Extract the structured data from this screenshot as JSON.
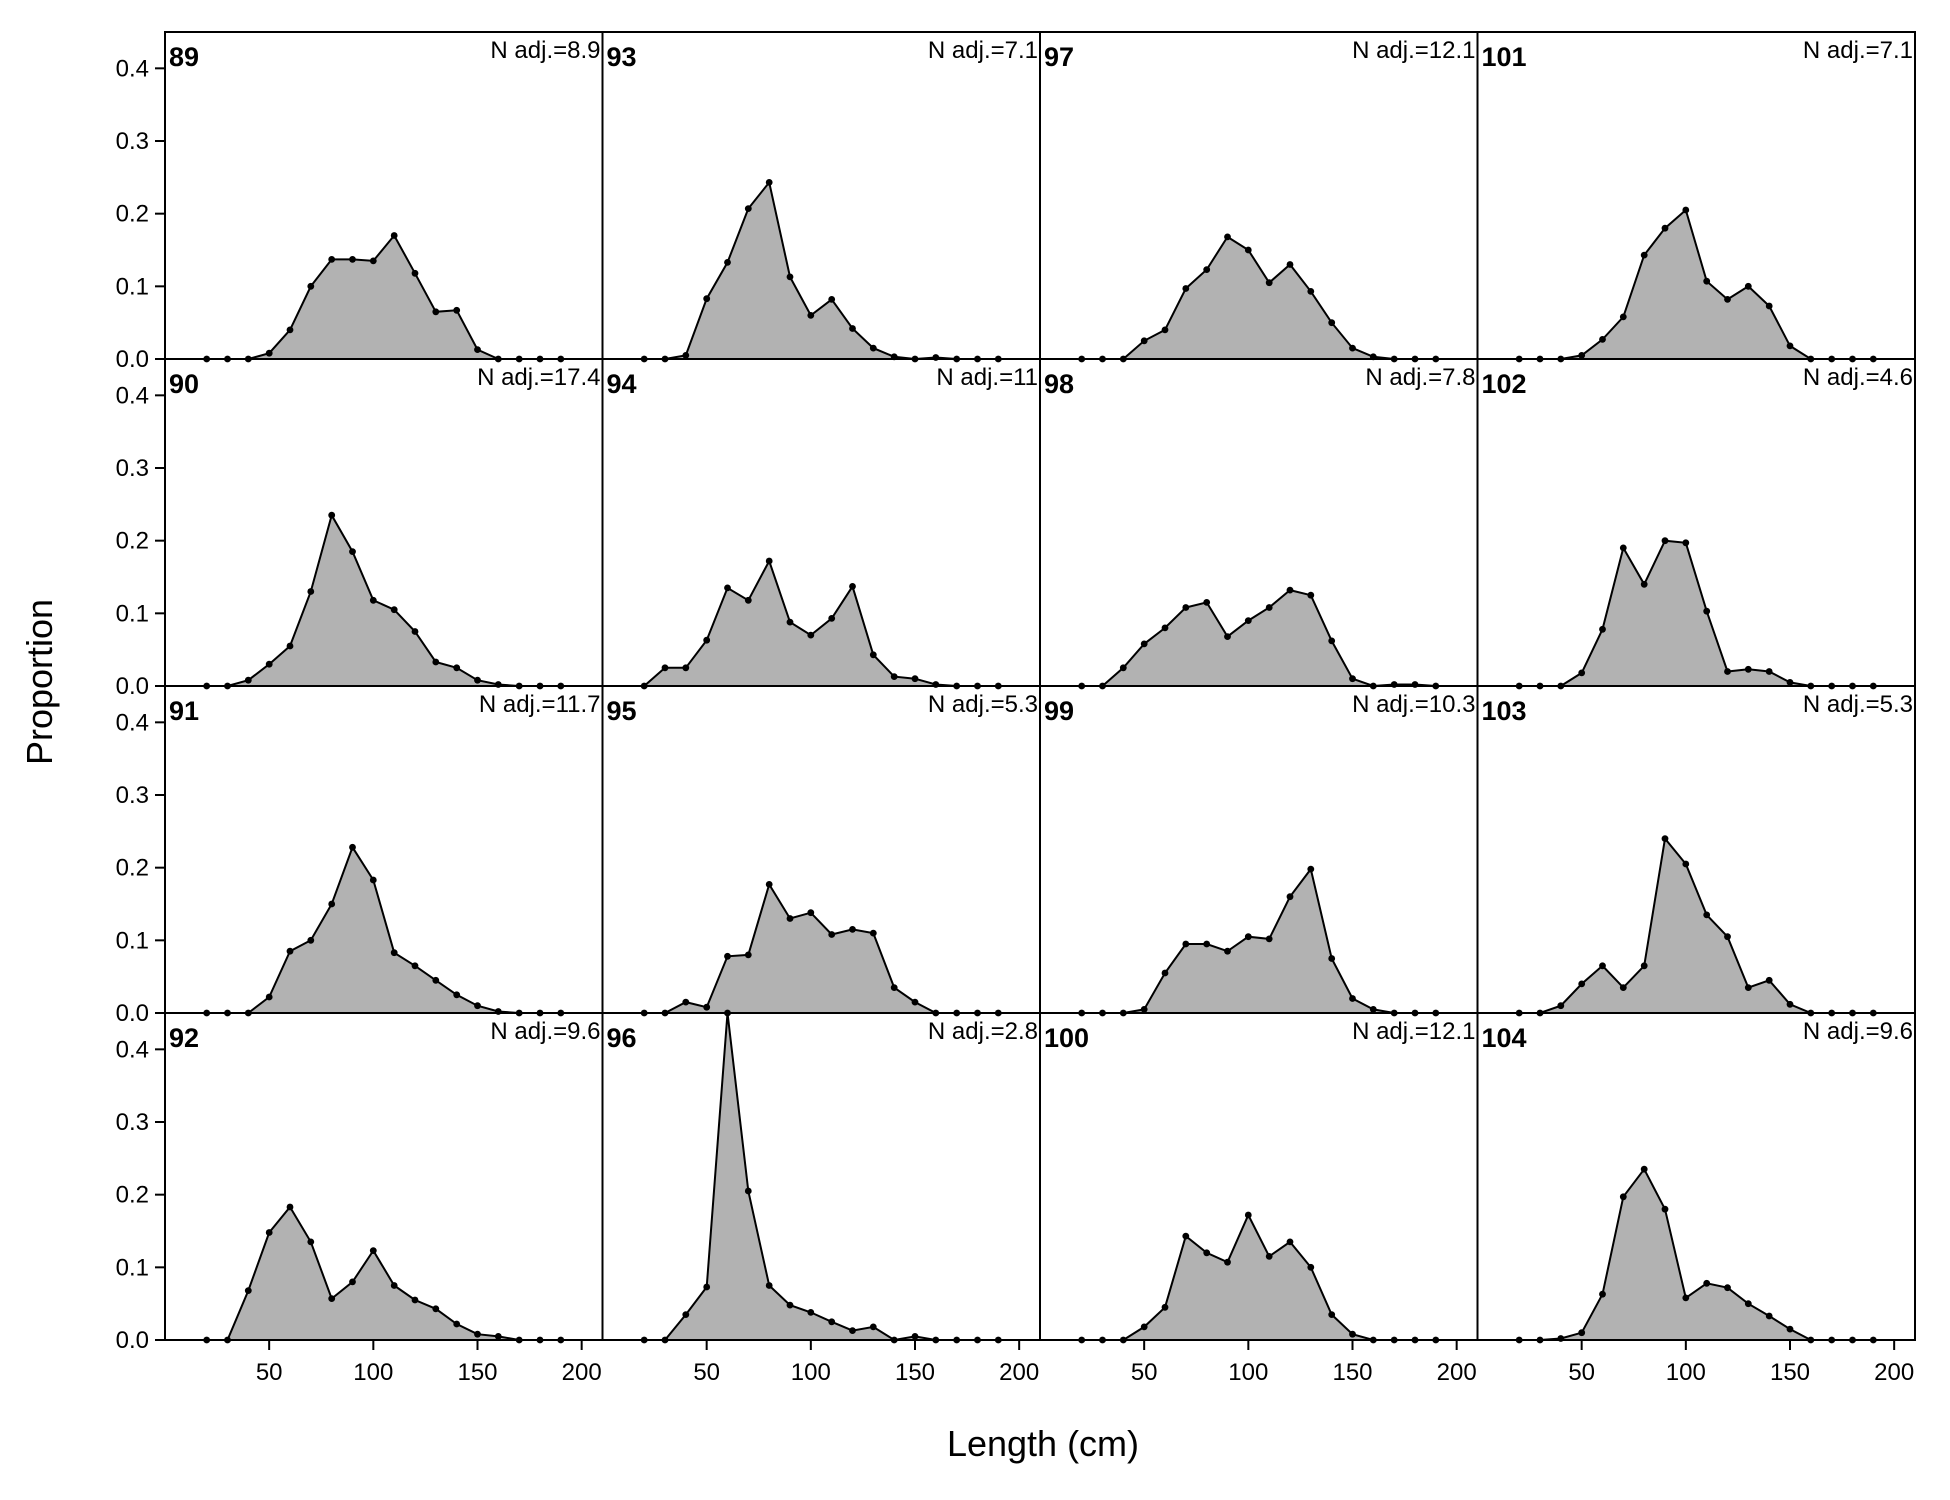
{
  "chart_data": {
    "type": "area",
    "xlabel": "Length (cm)",
    "ylabel": "Proportion",
    "xlim": [
      0,
      210
    ],
    "ylim": [
      0,
      0.45
    ],
    "xticks": [
      50,
      100,
      150,
      200
    ],
    "yticks": [
      0.0,
      0.1,
      0.2,
      0.3,
      0.4
    ],
    "ytick_labels": [
      "0.0",
      "0.1",
      "0.2",
      "0.3",
      "0.4"
    ],
    "grid": false,
    "x": [
      20,
      30,
      40,
      50,
      60,
      70,
      80,
      90,
      100,
      110,
      120,
      130,
      140,
      150,
      160,
      170,
      180,
      190
    ],
    "fill_color": "#b2b2b2",
    "line_color": "#000000",
    "layout": "4 rows x 4 columns, column-major order",
    "panels": [
      {
        "label": "89",
        "n_label": "N adj.=8.9",
        "values": [
          0,
          0,
          0,
          0.008,
          0.04,
          0.1,
          0.137,
          0.137,
          0.135,
          0.17,
          0.118,
          0.065,
          0.067,
          0.013,
          0,
          0,
          0,
          0
        ]
      },
      {
        "label": "90",
        "n_label": "N adj.=17.4",
        "values": [
          0,
          0,
          0.008,
          0.03,
          0.055,
          0.13,
          0.235,
          0.185,
          0.118,
          0.105,
          0.075,
          0.033,
          0.025,
          0.008,
          0.002,
          0,
          0,
          0
        ]
      },
      {
        "label": "91",
        "n_label": "N adj.=11.7",
        "values": [
          0,
          0,
          0,
          0.022,
          0.085,
          0.1,
          0.15,
          0.228,
          0.183,
          0.083,
          0.065,
          0.045,
          0.025,
          0.01,
          0.002,
          0,
          0,
          0
        ]
      },
      {
        "label": "92",
        "n_label": "N adj.=9.6",
        "values": [
          0,
          0,
          0.068,
          0.148,
          0.183,
          0.135,
          0.057,
          0.08,
          0.123,
          0.075,
          0.055,
          0.043,
          0.022,
          0.008,
          0.005,
          0,
          0,
          0
        ]
      },
      {
        "label": "93",
        "n_label": "N adj.=7.1",
        "values": [
          0,
          0,
          0.005,
          0.083,
          0.133,
          0.207,
          0.243,
          0.113,
          0.06,
          0.082,
          0.042,
          0.015,
          0.003,
          0,
          0.002,
          0,
          0,
          0
        ]
      },
      {
        "label": "94",
        "n_label": "N adj.=11",
        "values": [
          0,
          0.025,
          0.025,
          0.063,
          0.135,
          0.118,
          0.172,
          0.088,
          0.07,
          0.093,
          0.137,
          0.043,
          0.013,
          0.01,
          0.002,
          0,
          0,
          0
        ]
      },
      {
        "label": "95",
        "n_label": "N adj.=5.3",
        "values": [
          0,
          0,
          0.015,
          0.008,
          0.078,
          0.08,
          0.177,
          0.13,
          0.138,
          0.108,
          0.115,
          0.11,
          0.035,
          0.015,
          0,
          0,
          0,
          0
        ]
      },
      {
        "label": "96",
        "n_label": "N adj.=2.8",
        "values": [
          0,
          0,
          0.035,
          0.073,
          0.455,
          0.205,
          0.075,
          0.048,
          0.038,
          0.025,
          0.013,
          0.018,
          0,
          0.005,
          0,
          0,
          0,
          0
        ]
      },
      {
        "label": "97",
        "n_label": "N adj.=12.1",
        "values": [
          0,
          0,
          0,
          0.025,
          0.04,
          0.097,
          0.123,
          0.168,
          0.15,
          0.105,
          0.13,
          0.093,
          0.05,
          0.015,
          0.003,
          0,
          0,
          0
        ]
      },
      {
        "label": "98",
        "n_label": "N adj.=7.8",
        "values": [
          0,
          0,
          0.025,
          0.058,
          0.08,
          0.108,
          0.115,
          0.068,
          0.09,
          0.108,
          0.132,
          0.125,
          0.062,
          0.01,
          0,
          0.002,
          0.002,
          0
        ]
      },
      {
        "label": "99",
        "n_label": "N adj.=10.3",
        "values": [
          0,
          0,
          0,
          0.005,
          0.055,
          0.095,
          0.095,
          0.085,
          0.105,
          0.102,
          0.16,
          0.198,
          0.075,
          0.02,
          0.005,
          0,
          0,
          0
        ]
      },
      {
        "label": "100",
        "n_label": "N adj.=12.1",
        "values": [
          0,
          0,
          0,
          0.018,
          0.045,
          0.143,
          0.12,
          0.107,
          0.172,
          0.115,
          0.135,
          0.1,
          0.035,
          0.008,
          0,
          0,
          0,
          0
        ]
      },
      {
        "label": "101",
        "n_label": "N adj.=7.1",
        "values": [
          0,
          0,
          0,
          0.005,
          0.027,
          0.058,
          0.143,
          0.18,
          0.205,
          0.107,
          0.082,
          0.1,
          0.073,
          0.018,
          0,
          0,
          0,
          0
        ]
      },
      {
        "label": "102",
        "n_label": "N adj.=4.6",
        "values": [
          0,
          0,
          0,
          0.018,
          0.078,
          0.19,
          0.14,
          0.2,
          0.197,
          0.103,
          0.02,
          0.023,
          0.02,
          0.005,
          0,
          0,
          0,
          0
        ]
      },
      {
        "label": "103",
        "n_label": "N adj.=5.3",
        "values": [
          0,
          0,
          0.01,
          0.04,
          0.065,
          0.035,
          0.065,
          0.24,
          0.205,
          0.135,
          0.105,
          0.035,
          0.045,
          0.012,
          0,
          0,
          0,
          0
        ]
      },
      {
        "label": "104",
        "n_label": "N adj.=9.6",
        "values": [
          0,
          0,
          0.002,
          0.01,
          0.063,
          0.197,
          0.235,
          0.18,
          0.058,
          0.078,
          0.072,
          0.05,
          0.033,
          0.015,
          0,
          0,
          0,
          0
        ]
      }
    ]
  }
}
